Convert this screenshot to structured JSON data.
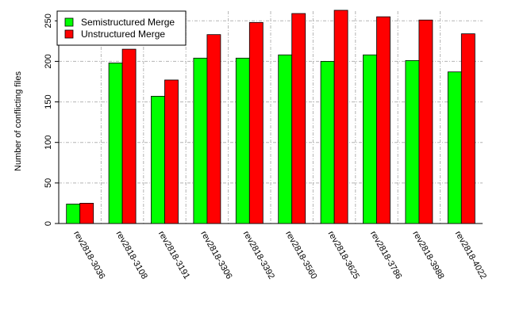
{
  "chart_data": {
    "type": "bar",
    "title": "",
    "xlabel": "",
    "ylabel": "Number of conflicting files",
    "ylim": [
      0,
      262
    ],
    "yticks": [
      0,
      50,
      100,
      150,
      200,
      250
    ],
    "grid": true,
    "legend_position": "top-left",
    "categories": [
      "rev2818-3036",
      "rev2818-3108",
      "rev2818-3191",
      "rev2818-3306",
      "rev2818-3392",
      "rev2818-3560",
      "rev2818-3625",
      "rev2818-3786",
      "rev2818-3988",
      "rev2818-4022"
    ],
    "series": [
      {
        "name": "Semistructured Merge",
        "color": "#00ff00",
        "values": [
          24,
          198,
          157,
          204,
          204,
          208,
          200,
          208,
          201,
          187
        ]
      },
      {
        "name": "Unstructured Merge",
        "color": "#ff0000",
        "values": [
          25,
          215,
          177,
          233,
          248,
          259,
          263,
          255,
          251,
          234
        ]
      }
    ]
  }
}
